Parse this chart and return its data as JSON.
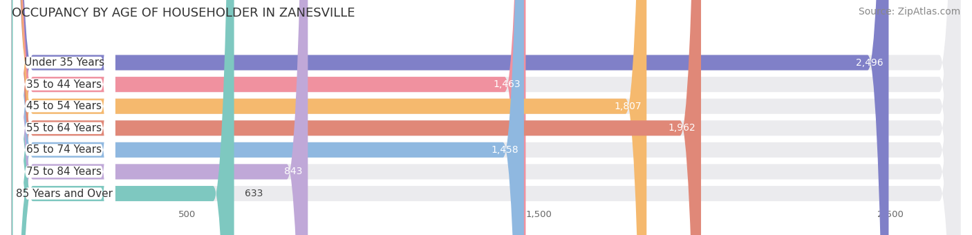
{
  "title": "OCCUPANCY BY AGE OF HOUSEHOLDER IN ZANESVILLE",
  "source": "Source: ZipAtlas.com",
  "categories": [
    "Under 35 Years",
    "35 to 44 Years",
    "45 to 54 Years",
    "55 to 64 Years",
    "65 to 74 Years",
    "75 to 84 Years",
    "85 Years and Over"
  ],
  "values": [
    2496,
    1463,
    1807,
    1962,
    1458,
    843,
    633
  ],
  "bar_colors": [
    "#8080c8",
    "#f0919f",
    "#f5b96e",
    "#e08878",
    "#8fb8e0",
    "#c0a8d8",
    "#7ec8c0"
  ],
  "bar_bg_color": "#ebebee",
  "background_color": "#ffffff",
  "xlim_max": 2700,
  "xticks": [
    500,
    1500,
    2500
  ],
  "title_fontsize": 13,
  "label_fontsize": 11,
  "value_fontsize": 10,
  "source_fontsize": 10
}
